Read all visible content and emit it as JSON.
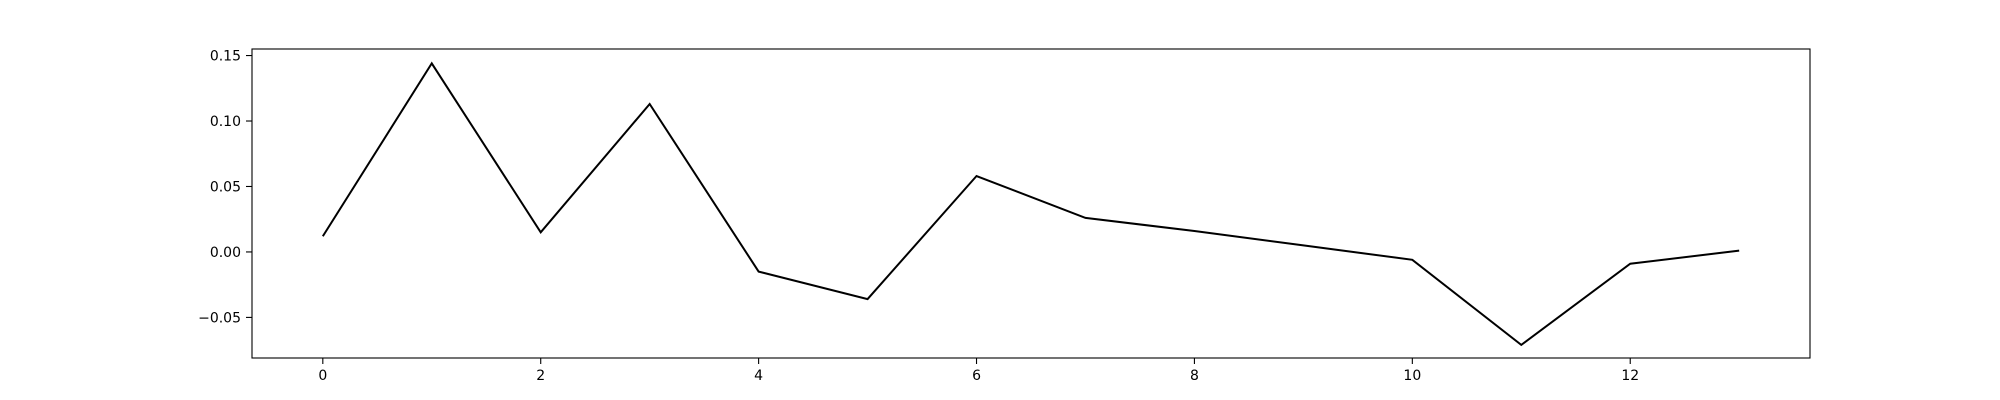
{
  "chart_data": {
    "type": "line",
    "title": "",
    "xlabel": "",
    "ylabel": "",
    "x": [
      0,
      1,
      2,
      3,
      4,
      5,
      6,
      7,
      8,
      9,
      10,
      11,
      12,
      13
    ],
    "series": [
      {
        "values": [
          0.012,
          0.144,
          0.015,
          0.113,
          -0.015,
          -0.036,
          0.058,
          0.026,
          0.016,
          0.005,
          -0.006,
          -0.071,
          -0.009,
          0.001
        ],
        "color": "#000000"
      }
    ],
    "xlim": [
      -0.65,
      13.65
    ],
    "ylim": [
      -0.081,
      0.155
    ],
    "xticks": [
      0,
      2,
      4,
      6,
      8,
      10,
      12
    ],
    "xtick_labels": [
      "0",
      "2",
      "4",
      "6",
      "8",
      "10",
      "12"
    ],
    "yticks": [
      -0.05,
      0.0,
      0.05,
      0.1,
      0.15
    ],
    "ytick_labels": [
      "−0.05",
      "0.00",
      "0.05",
      "0.10",
      "0.15"
    ],
    "grid": false,
    "legend": "none"
  }
}
